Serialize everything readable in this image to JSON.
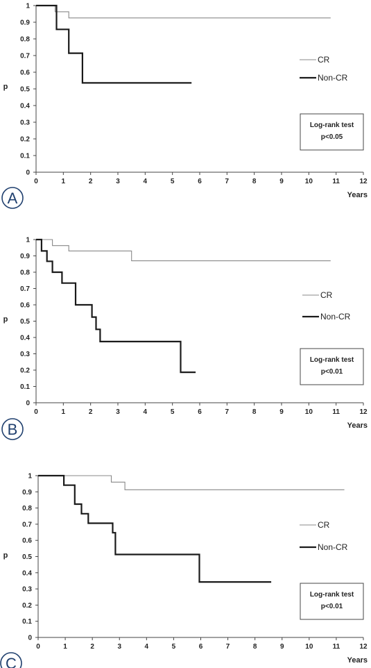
{
  "chart_data": [
    {
      "type": "line",
      "panel_label": "A",
      "xlabel": "Years",
      "ylabel": "p",
      "xlim": [
        0,
        12
      ],
      "ylim": [
        0,
        1
      ],
      "x_ticks": [
        "0",
        "1",
        "2",
        "3",
        "4",
        "5",
        "6",
        "7",
        "8",
        "9",
        "10",
        "11",
        "12"
      ],
      "y_ticks": [
        "0",
        "0.1",
        "0.2",
        "0.3",
        "0.4",
        "0.5",
        "0.6",
        "0.7",
        "0.8",
        "0.9",
        "1"
      ],
      "series": [
        {
          "name": "CR",
          "color": "#888888",
          "style": "thin",
          "x": [
            0,
            0.7,
            0.7,
            1.2,
            1.2,
            10.8
          ],
          "y": [
            1,
            1,
            0.963,
            0.963,
            0.926,
            0.926
          ]
        },
        {
          "name": "Non-CR",
          "color": "#1a1a1a",
          "style": "thick",
          "x": [
            0,
            0.75,
            0.75,
            1.2,
            1.2,
            1.7,
            1.7,
            5.7
          ],
          "y": [
            1,
            1,
            0.857,
            0.857,
            0.714,
            0.714,
            0.536,
            0.536
          ]
        }
      ],
      "annotation": [
        "Log-rank test",
        "p<0.05"
      ]
    },
    {
      "type": "line",
      "panel_label": "B",
      "xlabel": "Years",
      "ylabel": "p",
      "xlim": [
        0,
        12
      ],
      "ylim": [
        0,
        1
      ],
      "x_ticks": [
        "0",
        "1",
        "2",
        "3",
        "4",
        "5",
        "6",
        "7",
        "8",
        "9",
        "10",
        "11",
        "12"
      ],
      "y_ticks": [
        "0",
        "0.1",
        "0.2",
        "0.3",
        "0.4",
        "0.5",
        "0.6",
        "0.7",
        "0.8",
        "0.9",
        "1"
      ],
      "series": [
        {
          "name": "CR",
          "color": "#888888",
          "style": "thin",
          "x": [
            0,
            0.6,
            0.6,
            1.2,
            1.2,
            3.5,
            3.5,
            10.8
          ],
          "y": [
            1,
            1,
            0.963,
            0.963,
            0.93,
            0.93,
            0.87,
            0.87
          ]
        },
        {
          "name": "Non-CR",
          "color": "#1a1a1a",
          "style": "thick",
          "x": [
            0,
            0.2,
            0.2,
            0.4,
            0.4,
            0.6,
            0.6,
            0.95,
            0.95,
            1.45,
            1.45,
            2.05,
            2.05,
            2.2,
            2.2,
            2.35,
            2.35,
            5.3,
            5.3,
            5.85
          ],
          "y": [
            1,
            1,
            0.93,
            0.93,
            0.867,
            0.867,
            0.8,
            0.8,
            0.733,
            0.733,
            0.6,
            0.6,
            0.525,
            0.525,
            0.45,
            0.45,
            0.375,
            0.375,
            0.187,
            0.187
          ]
        }
      ],
      "annotation": [
        "Log-rank test",
        "p<0.01"
      ]
    },
    {
      "type": "line",
      "panel_label": "C",
      "xlabel": "Years",
      "ylabel": "p",
      "xlim": [
        0,
        12
      ],
      "ylim": [
        0,
        1
      ],
      "x_ticks": [
        "0",
        "1",
        "2",
        "3",
        "4",
        "5",
        "6",
        "7",
        "8",
        "9",
        "10",
        "11",
        "12"
      ],
      "y_ticks": [
        "0",
        "0.1",
        "0.2",
        "0.3",
        "0.4",
        "0.5",
        "0.6",
        "0.7",
        "0.8",
        "0.9",
        "1"
      ],
      "series": [
        {
          "name": "CR",
          "color": "#888888",
          "style": "thin",
          "x": [
            0,
            2.7,
            2.7,
            3.2,
            3.2,
            11.3
          ],
          "y": [
            1,
            1,
            0.96,
            0.96,
            0.913,
            0.913
          ]
        },
        {
          "name": "Non-CR",
          "color": "#1a1a1a",
          "style": "thick",
          "x": [
            0,
            0.95,
            0.95,
            1.35,
            1.35,
            1.6,
            1.6,
            1.85,
            1.85,
            2.75,
            2.75,
            2.85,
            2.85,
            5.95,
            5.95,
            8.6
          ],
          "y": [
            1,
            1,
            0.941,
            0.941,
            0.824,
            0.824,
            0.765,
            0.765,
            0.706,
            0.706,
            0.647,
            0.647,
            0.513,
            0.513,
            0.343,
            0.343
          ]
        }
      ],
      "annotation": [
        "Log-rank test",
        "p<0.01"
      ]
    }
  ]
}
